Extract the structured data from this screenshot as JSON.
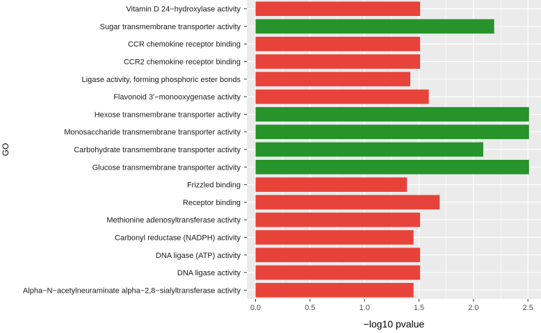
{
  "chart_data": {
    "type": "bar",
    "orientation": "horizontal",
    "title": "",
    "xlabel": "−log10 pvalue",
    "ylabel": "GO",
    "xlim": [
      -0.08,
      2.62
    ],
    "xticks": [
      0.0,
      0.5,
      1.0,
      1.5,
      2.0,
      2.5
    ],
    "xtick_labels": [
      "0.0",
      "0.5",
      "1.0",
      "1.5",
      "2.0",
      "2.5"
    ],
    "grid": true,
    "legend": "none",
    "colors": {
      "red": "#e8433a",
      "green": "#26932b",
      "panel": "#ebebeb",
      "grid": "#ffffff"
    },
    "categories": [
      "Vitamin D 24−hydroxylase activity",
      "Sugar transmembrane transporter activity",
      "CCR chemokine receptor binding",
      "CCR2 chemokine receptor binding",
      "Ligase activity, forming phosphoric ester bonds",
      "Flavonoid 3'−monooxygenase activity",
      "Hexose transmembrane transporter activity",
      "Monosaccharide transmembrane transporter activity",
      "Carbohydrate transmembrane transporter activity",
      "Glucose transmembrane transporter activity",
      "Frizzled binding",
      "Receptor binding",
      "Methionine adenosyltransferase activity",
      "Carbonyl reductase (NADPH) activity",
      "DNA ligase (ATP) activity",
      "DNA ligase activity",
      "Alpha−N−acetylneuraminate alpha−2,8−sialyltransferase activity"
    ],
    "values": [
      1.51,
      2.19,
      1.51,
      1.51,
      1.42,
      1.59,
      2.51,
      2.51,
      2.09,
      2.51,
      1.39,
      1.69,
      1.51,
      1.45,
      1.51,
      1.51,
      1.45
    ],
    "bar_colors": [
      "red",
      "green",
      "red",
      "red",
      "red",
      "red",
      "green",
      "green",
      "green",
      "green",
      "red",
      "red",
      "red",
      "red",
      "red",
      "red",
      "red"
    ]
  }
}
